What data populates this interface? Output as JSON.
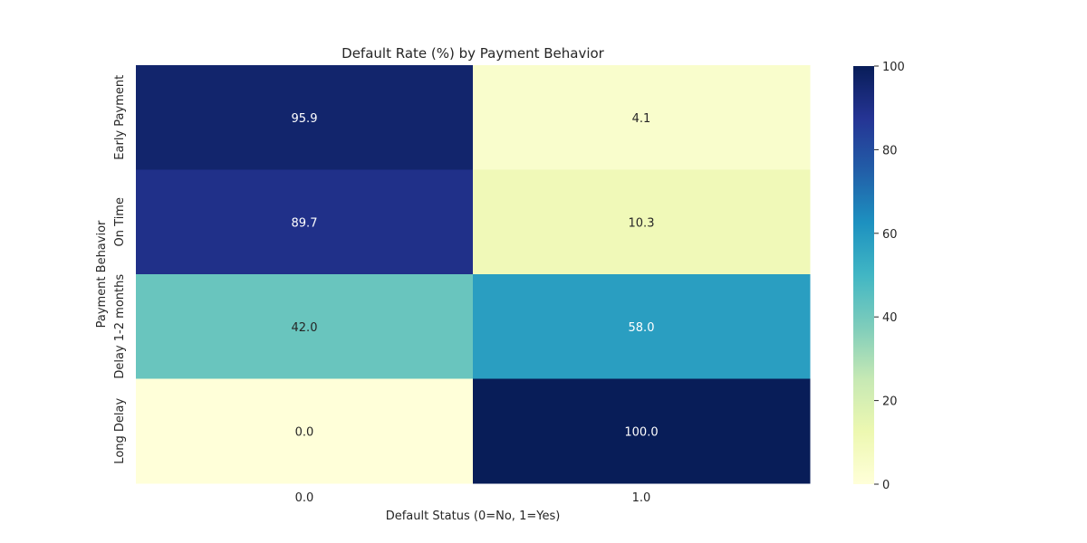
{
  "chart_data": {
    "type": "heatmap",
    "title": "Default Rate (%) by Payment Behavior",
    "xlabel": "Default Status (0=No, 1=Yes)",
    "ylabel": "Payment Behavior",
    "x_categories": [
      "0.0",
      "1.0"
    ],
    "y_categories": [
      "Early Payment",
      "On Time",
      "Delay 1-2 months",
      "Long Delay"
    ],
    "values": [
      [
        95.9,
        4.1
      ],
      [
        89.7,
        10.3
      ],
      [
        42.0,
        58.0
      ],
      [
        0.0,
        100.0
      ]
    ],
    "value_labels": [
      [
        "95.9",
        "4.1"
      ],
      [
        "89.7",
        "10.3"
      ],
      [
        "42.0",
        "58.0"
      ],
      [
        "0.0",
        "100.0"
      ]
    ],
    "colormap": "YlGnBu",
    "colorbar": {
      "min": 0,
      "max": 100,
      "ticks": [
        0,
        20,
        40,
        60,
        80,
        100
      ]
    },
    "grid": false
  }
}
